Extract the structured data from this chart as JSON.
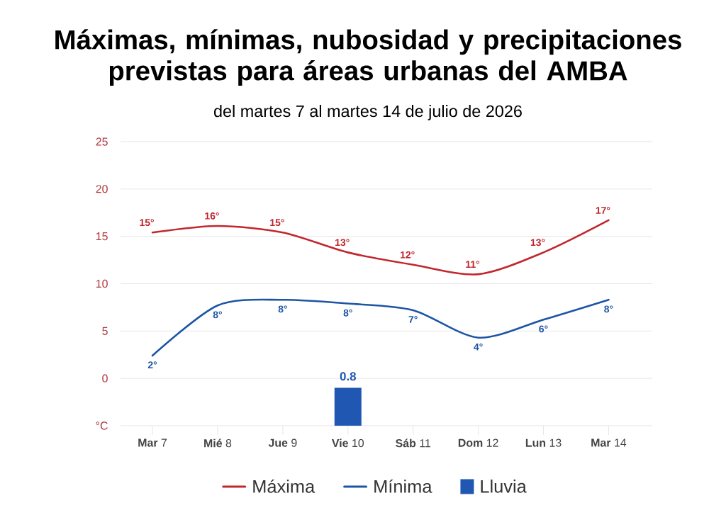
{
  "chart_data": {
    "type": "line",
    "title": "Máximas, mínimas, nubosidad y precipitaciones previstas para áreas urbanas del AMBA",
    "subtitle": "del martes 7 al martes 14 de julio de 2026",
    "categories": [
      "**Mar** 7",
      "**Mié** 8",
      "**Jue** 9",
      "**Vie** 10",
      "**Sáb** 11",
      "**Dom** 12",
      "**Lun** 13",
      "**Mar** 14"
    ],
    "series": [
      {
        "name": "Máxima",
        "color": "#c1272d",
        "values": [
          15.4,
          16.1,
          15.4,
          13.3,
          12.0,
          11.0,
          13.3,
          16.7
        ],
        "value_labels": [
          "15°",
          "16°",
          "15°",
          "13°",
          "12°",
          "11°",
          "13°",
          "17°"
        ]
      },
      {
        "name": "Mínima",
        "color": "#1d55a5",
        "values": [
          2.4,
          7.7,
          8.3,
          7.9,
          7.2,
          4.3,
          6.2,
          8.3
        ],
        "value_labels": [
          "2°",
          "8°",
          "8°",
          "8°",
          "7°",
          "4°",
          "6°",
          "8°"
        ]
      },
      {
        "name": "Lluvia",
        "type": "bar",
        "axis": "y2",
        "color": "#1f57b2",
        "values": [
          null,
          null,
          null,
          0.8,
          null,
          null,
          null,
          null
        ],
        "value_labels": [
          null,
          null,
          null,
          "0.8",
          null,
          null,
          null,
          null
        ]
      }
    ],
    "ylim": [
      -5,
      25
    ],
    "yticks": [
      {
        "value": -5,
        "label": "°C"
      },
      0,
      5,
      10,
      15,
      20,
      25
    ],
    "y2lim": [
      0,
      6
    ],
    "grid": "y",
    "legend": "bottom"
  }
}
